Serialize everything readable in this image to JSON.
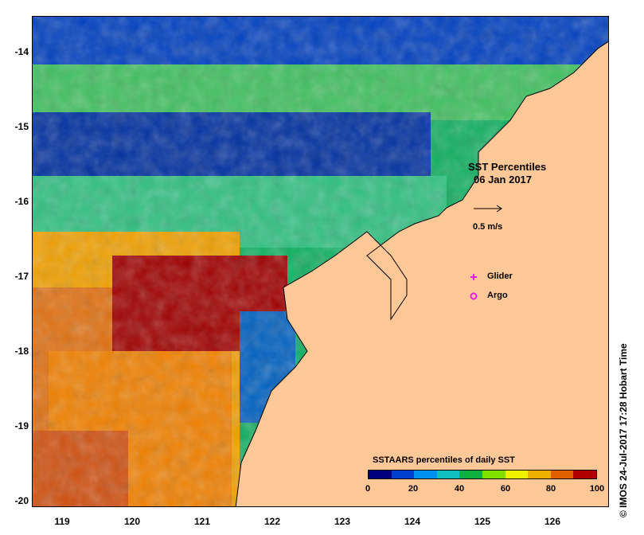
{
  "map": {
    "title": "SST Percentiles",
    "date": "06 Jan 2017",
    "vector_scale_label": "0.5 m/s",
    "legend_markers": [
      {
        "label": "Glider",
        "color": "#e020e0",
        "shape": "plus"
      },
      {
        "label": "Argo",
        "color": "#e020e0",
        "shape": "open-circle"
      }
    ],
    "x_ticks": [
      "119",
      "120",
      "121",
      "122",
      "123",
      "124",
      "125",
      "126"
    ],
    "y_ticks": [
      "-14",
      "-15",
      "-16",
      "-17",
      "-18",
      "-19",
      "-20"
    ],
    "colorbar": {
      "title": "SSTAARS percentiles of daily SST",
      "labels": [
        "0",
        "20",
        "40",
        "60",
        "80",
        "100"
      ],
      "colors": [
        "#00007f",
        "#0040d0",
        "#0090f0",
        "#10c0c0",
        "#10b040",
        "#80e000",
        "#f0f000",
        "#f0b000",
        "#e06000",
        "#b00000"
      ]
    },
    "land_color": "#ffc896",
    "credit": "© IMOS 24-Jul-2017 17:28 Hobart Time"
  }
}
